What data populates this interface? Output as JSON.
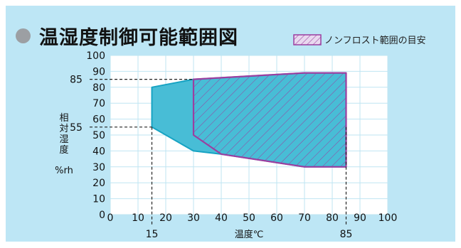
{
  "chart_data": {
    "type": "area",
    "title": "温湿度制御可能範囲図",
    "xlabel": "温度℃",
    "ylabel": [
      "相",
      "対",
      "湿",
      "度"
    ],
    "ylabel_unit": "%rh",
    "xlim": [
      0,
      100
    ],
    "ylim": [
      0,
      100
    ],
    "x_ticks": [
      0,
      10,
      20,
      30,
      40,
      50,
      60,
      70,
      80,
      90,
      100
    ],
    "y_ticks": [
      0,
      10,
      20,
      30,
      40,
      50,
      60,
      70,
      80,
      90,
      100
    ],
    "grid": true,
    "series": [
      {
        "role": "controllable-range",
        "color": "#48bdd6",
        "edge_color": "#17a3c3",
        "points": [
          [
            15,
            80
          ],
          [
            30,
            85
          ],
          [
            70,
            89
          ],
          [
            85,
            89
          ],
          [
            85,
            30
          ],
          [
            70,
            30
          ],
          [
            40,
            38
          ],
          [
            30,
            40
          ],
          [
            15,
            55
          ]
        ]
      },
      {
        "name": "ノンフロスト範囲の目安",
        "color": "#9b3fa0",
        "hatch": true,
        "points": [
          [
            30,
            85
          ],
          [
            70,
            89
          ],
          [
            85,
            89
          ],
          [
            85,
            30
          ],
          [
            70,
            30
          ],
          [
            40,
            38
          ],
          [
            30,
            50
          ]
        ]
      }
    ],
    "reference_lines": {
      "x": [
        15,
        85
      ],
      "y": [
        55,
        85
      ]
    }
  },
  "colors": {
    "panel_background": "#bde6f5",
    "plot_background": "#ffffff",
    "grid": "#bfe5f2",
    "guide": "#222222",
    "title_dot": "#9c9fa3"
  }
}
